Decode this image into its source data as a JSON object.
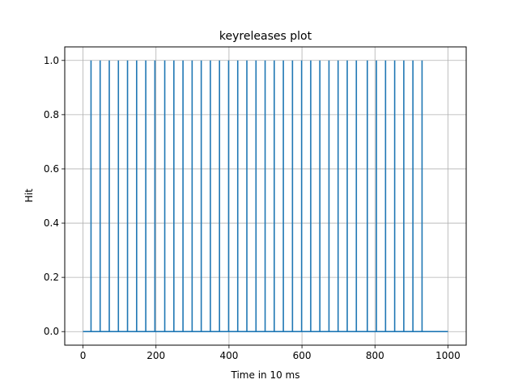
{
  "chart_data": {
    "type": "line",
    "title": "keyreleases plot",
    "xlabel": "Time in 10 ms",
    "ylabel": "Hit",
    "xlim": [
      -50,
      1050
    ],
    "ylim": [
      -0.05,
      1.05
    ],
    "xticks": [
      0,
      200,
      400,
      600,
      800,
      1000
    ],
    "xtick_labels": [
      "0",
      "200",
      "400",
      "600",
      "800",
      "1000"
    ],
    "yticks": [
      0.0,
      0.2,
      0.4,
      0.6,
      0.8,
      1.0
    ],
    "ytick_labels": [
      "0.0",
      "0.2",
      "0.4",
      "0.6",
      "0.8",
      "1.0"
    ],
    "grid": true,
    "line_color": "#1f77b4",
    "series": [
      {
        "x_range": [
          0,
          1000
        ],
        "baseline": 0,
        "pulse_height": 1,
        "pulse_positions": [
          22,
          47,
          72,
          97,
          122,
          147,
          172,
          197,
          224,
          249,
          274,
          299,
          324,
          349,
          374,
          399,
          424,
          449,
          474,
          499,
          524,
          549,
          574,
          599,
          624,
          649,
          674,
          699,
          724,
          749,
          779,
          804,
          829,
          854,
          879,
          904,
          929
        ]
      }
    ]
  }
}
